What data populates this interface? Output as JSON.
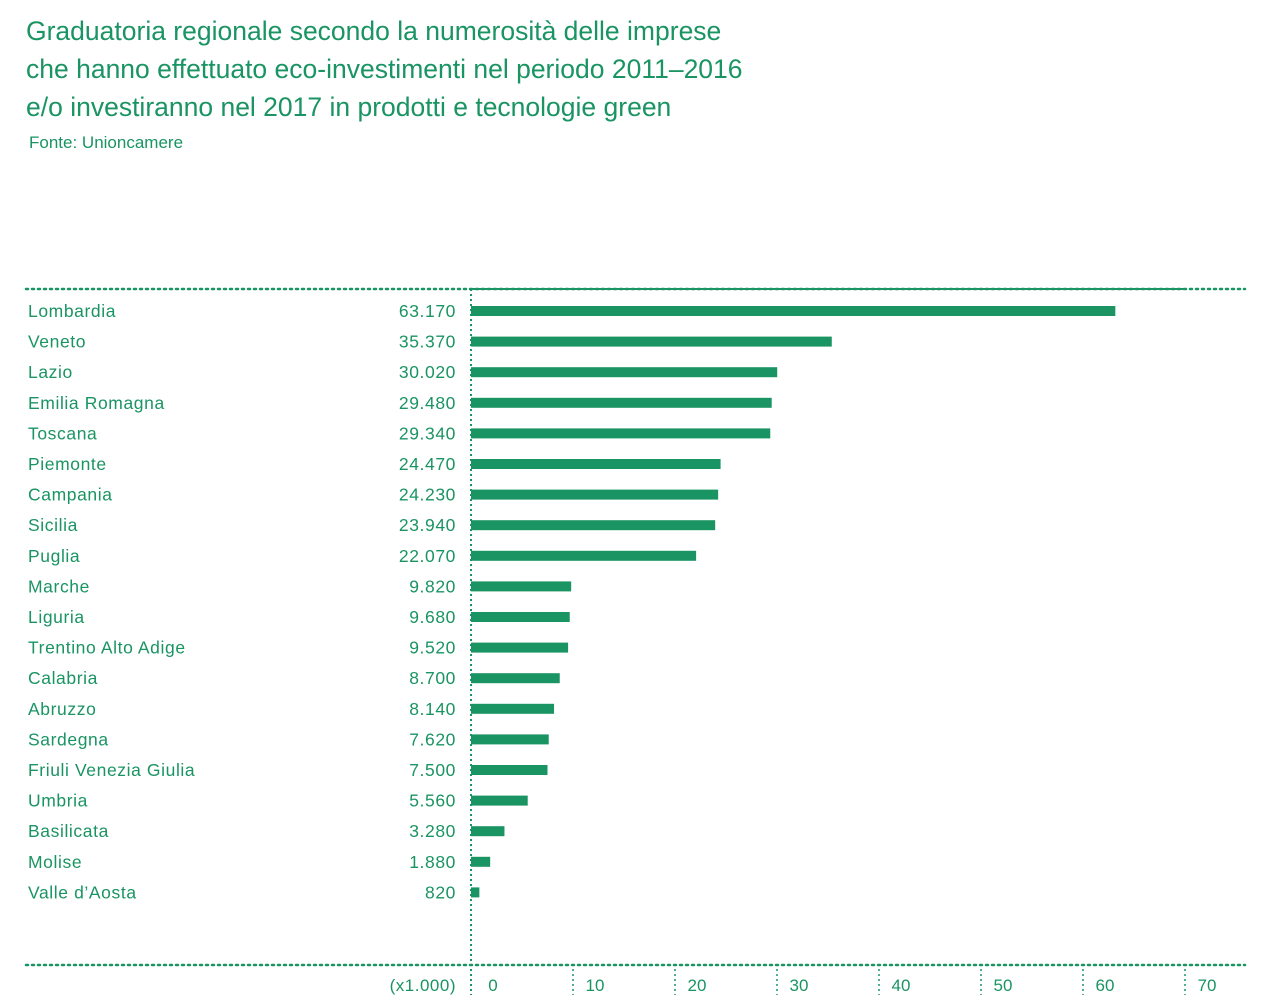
{
  "header": {
    "title_lines": [
      "Graduatoria regionale secondo la numerosità delle imprese",
      "che hanno effettuato eco-investimenti nel periodo 2011–2016",
      "e/o investiranno nel 2017 in prodotti e tecnologie green"
    ],
    "source": "Fonte: Unioncamere"
  },
  "colors": {
    "accent": "#1a9463",
    "bar": "#1a9463"
  },
  "chart_data": {
    "type": "bar",
    "orientation": "horizontal",
    "unit_label": "(x1.000)",
    "categories": [
      "Lombardia",
      "Veneto",
      "Lazio",
      "Emilia Romagna",
      "Toscana",
      "Piemonte",
      "Campania",
      "Sicilia",
      "Puglia",
      "Marche",
      "Liguria",
      "Trentino Alto Adige",
      "Calabria",
      "Abruzzo",
      "Sardegna",
      "Friuli Venezia Giulia",
      "Umbria",
      "Basilicata",
      "Molise",
      "Valle d’Aosta"
    ],
    "values": [
      63170,
      35370,
      30020,
      29480,
      29340,
      24470,
      24230,
      23940,
      22070,
      9820,
      9680,
      9520,
      8700,
      8140,
      7620,
      7500,
      5560,
      3280,
      1880,
      820
    ],
    "value_labels": [
      "63.170",
      "35.370",
      "30.020",
      "29.480",
      "29.340",
      "24.470",
      "24.230",
      "23.940",
      "22.070",
      "9.820",
      "9.680",
      "9.520",
      "8.700",
      "8.140",
      "7.620",
      "7.500",
      "5.560",
      "3.280",
      "1.880",
      "820"
    ],
    "x_ticks": [
      0,
      10,
      20,
      30,
      40,
      50,
      60,
      70
    ],
    "x_tick_labels": [
      "0",
      "10",
      "20",
      "30",
      "40",
      "50",
      "60",
      "70"
    ],
    "xlim": [
      0,
      70000
    ],
    "grid": "dotted vertical at ticks"
  }
}
